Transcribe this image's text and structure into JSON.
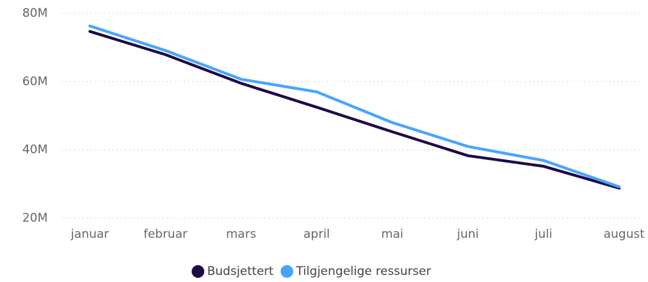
{
  "chart_data": {
    "type": "line",
    "categories": [
      "januar",
      "februar",
      "mars",
      "april",
      "mai",
      "juni",
      "juli",
      "august"
    ],
    "series": [
      {
        "name": "Budsjettert",
        "color": "#1e0b45",
        "values": [
          74700000,
          67900000,
          59500000,
          52500000,
          45300000,
          38300000,
          35200000,
          28800000
        ]
      },
      {
        "name": "Tilgjengelige ressurser",
        "color": "#45a5ff",
        "values": [
          76300000,
          69100000,
          60700000,
          57000000,
          48000000,
          41000000,
          36900000,
          29200000
        ]
      }
    ],
    "ylim": [
      20000000,
      80000000
    ],
    "yticks": [
      {
        "value": 20000000,
        "label": "20M"
      },
      {
        "value": 40000000,
        "label": "40M"
      },
      {
        "value": 60000000,
        "label": "60M"
      },
      {
        "value": 80000000,
        "label": "80M"
      }
    ],
    "grid": true,
    "legend": "bottom"
  }
}
